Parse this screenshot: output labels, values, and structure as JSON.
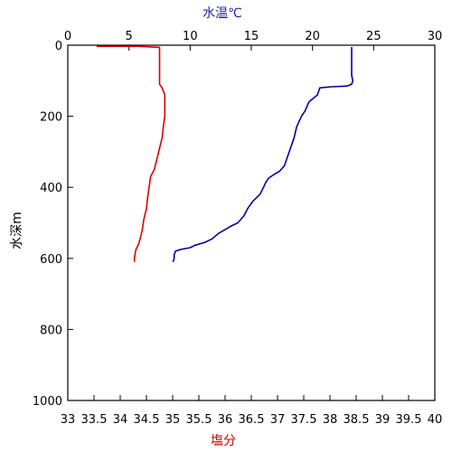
{
  "chart_data": {
    "type": "line",
    "title": "",
    "grid": false,
    "legend": "none",
    "y_axis": {
      "label": "水深m",
      "range": [
        0,
        1000
      ],
      "inverted": true,
      "ticks": [
        0,
        200,
        400,
        600,
        800,
        1000
      ],
      "tick_labels": [
        "0",
        "200",
        "400",
        "600",
        "800",
        "1000"
      ]
    },
    "top_axis": {
      "label": "水温℃",
      "label_color": "#1f1fa8",
      "range": [
        0,
        30
      ],
      "ticks": [
        0,
        5,
        10,
        15,
        20,
        25,
        30
      ],
      "tick_labels": [
        "0",
        "5",
        "10",
        "15",
        "20",
        "25",
        "30"
      ]
    },
    "bottom_axis": {
      "label": "塩分",
      "label_color": "#cc0000",
      "range": [
        33,
        40
      ],
      "ticks": [
        33,
        33.5,
        34,
        34.5,
        35,
        35.5,
        36,
        36.5,
        37,
        37.5,
        38,
        38.5,
        39,
        39.5,
        40
      ],
      "tick_labels": [
        "33",
        "33.5",
        "34",
        "34.5",
        "35",
        "35.5",
        "36",
        "36.5",
        "37",
        "37.5",
        "38",
        "38.5",
        "39",
        "39.5",
        "40"
      ]
    },
    "series": [
      {
        "axis": "top",
        "color": "#0000aa",
        "points": [
          [
            23.2,
            5
          ],
          [
            23.2,
            30
          ],
          [
            23.2,
            60
          ],
          [
            23.2,
            85
          ],
          [
            23.3,
            100
          ],
          [
            23.2,
            110
          ],
          [
            22.8,
            115
          ],
          [
            21.5,
            117
          ],
          [
            20.6,
            120
          ],
          [
            20.4,
            140
          ],
          [
            19.7,
            160
          ],
          [
            19.4,
            185
          ],
          [
            19.1,
            200
          ],
          [
            18.7,
            230
          ],
          [
            18.5,
            260
          ],
          [
            18.2,
            290
          ],
          [
            17.9,
            320
          ],
          [
            17.7,
            340
          ],
          [
            17.3,
            355
          ],
          [
            16.8,
            365
          ],
          [
            16.4,
            375
          ],
          [
            16.2,
            385
          ],
          [
            16.0,
            400
          ],
          [
            15.7,
            420
          ],
          [
            15.1,
            440
          ],
          [
            14.7,
            460
          ],
          [
            14.4,
            480
          ],
          [
            13.9,
            500
          ],
          [
            13.3,
            510
          ],
          [
            12.8,
            520
          ],
          [
            12.3,
            530
          ],
          [
            11.8,
            545
          ],
          [
            11.2,
            555
          ],
          [
            10.4,
            563
          ],
          [
            10.0,
            570
          ],
          [
            9.2,
            575
          ],
          [
            8.8,
            580
          ],
          [
            8.7,
            590
          ],
          [
            8.7,
            600
          ],
          [
            8.6,
            610
          ]
        ]
      },
      {
        "axis": "bottom",
        "color": "#dd0000",
        "points": [
          [
            33.55,
            3
          ],
          [
            34.35,
            3
          ],
          [
            34.75,
            6
          ],
          [
            34.75,
            30
          ],
          [
            34.75,
            60
          ],
          [
            34.75,
            90
          ],
          [
            34.75,
            110
          ],
          [
            34.8,
            120
          ],
          [
            34.85,
            140
          ],
          [
            34.85,
            170
          ],
          [
            34.85,
            200
          ],
          [
            34.82,
            230
          ],
          [
            34.8,
            260
          ],
          [
            34.75,
            290
          ],
          [
            34.7,
            320
          ],
          [
            34.65,
            350
          ],
          [
            34.58,
            370
          ],
          [
            34.55,
            400
          ],
          [
            34.52,
            430
          ],
          [
            34.5,
            460
          ],
          [
            34.45,
            490
          ],
          [
            34.42,
            520
          ],
          [
            34.38,
            545
          ],
          [
            34.35,
            560
          ],
          [
            34.3,
            575
          ],
          [
            34.28,
            590
          ],
          [
            34.27,
            600
          ],
          [
            34.27,
            610
          ]
        ]
      }
    ]
  }
}
